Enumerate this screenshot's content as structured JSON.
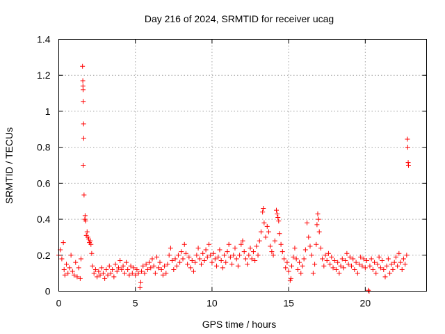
{
  "chart_data": {
    "type": "scatter",
    "title": "Day 216 of 2024, SRMTID for receiver ucag",
    "xlabel": "GPS time / hours",
    "ylabel": "SRMTID / TECUs",
    "xlim": [
      0,
      24
    ],
    "ylim": [
      0,
      1.4
    ],
    "xticks": [
      0,
      5,
      10,
      15,
      20
    ],
    "xtick_labels": [
      "0",
      "5",
      "10",
      "15",
      "20"
    ],
    "yticks": [
      0,
      0.2,
      0.4,
      0.6,
      0.8,
      1,
      1.2,
      1.4
    ],
    "ytick_labels": [
      "0",
      "0.2",
      "0.4",
      "0.6",
      "0.8",
      "1",
      "1.2",
      "1.4"
    ],
    "grid": true,
    "marker": "+",
    "series": [
      {
        "name": "SRMTID",
        "color": "#ff0000",
        "points": [
          [
            0.0,
            0.2
          ],
          [
            0.1,
            0.23
          ],
          [
            0.2,
            0.18
          ],
          [
            0.3,
            0.27
          ],
          [
            0.35,
            0.12
          ],
          [
            0.4,
            0.09
          ],
          [
            0.5,
            0.15
          ],
          [
            0.6,
            0.1
          ],
          [
            0.7,
            0.13
          ],
          [
            0.8,
            0.2
          ],
          [
            0.9,
            0.11
          ],
          [
            1.0,
            0.09
          ],
          [
            1.1,
            0.16
          ],
          [
            1.2,
            0.08
          ],
          [
            1.3,
            0.13
          ],
          [
            1.4,
            0.07
          ],
          [
            1.45,
            0.18
          ],
          [
            1.55,
            1.25
          ],
          [
            1.57,
            1.17
          ],
          [
            1.58,
            1.14
          ],
          [
            1.59,
            1.12
          ],
          [
            1.6,
            1.055
          ],
          [
            1.62,
            0.93
          ],
          [
            1.63,
            0.85
          ],
          [
            1.6,
            0.7
          ],
          [
            1.65,
            0.535
          ],
          [
            1.7,
            0.4
          ],
          [
            1.72,
            0.42
          ],
          [
            1.75,
            0.39
          ],
          [
            1.8,
            0.31
          ],
          [
            1.85,
            0.33
          ],
          [
            1.9,
            0.3
          ],
          [
            1.95,
            0.29
          ],
          [
            2.0,
            0.27
          ],
          [
            2.05,
            0.28
          ],
          [
            2.1,
            0.26
          ],
          [
            2.15,
            0.21
          ],
          [
            2.2,
            0.14
          ],
          [
            2.3,
            0.1
          ],
          [
            2.4,
            0.12
          ],
          [
            2.5,
            0.08
          ],
          [
            2.6,
            0.11
          ],
          [
            2.7,
            0.09
          ],
          [
            2.8,
            0.13
          ],
          [
            2.9,
            0.1
          ],
          [
            3.0,
            0.07
          ],
          [
            3.1,
            0.12
          ],
          [
            3.2,
            0.09
          ],
          [
            3.3,
            0.14
          ],
          [
            3.4,
            0.1
          ],
          [
            3.5,
            0.12
          ],
          [
            3.6,
            0.08
          ],
          [
            3.7,
            0.15
          ],
          [
            3.8,
            0.11
          ],
          [
            3.9,
            0.13
          ],
          [
            4.0,
            0.17
          ],
          [
            4.1,
            0.12
          ],
          [
            4.2,
            0.14
          ],
          [
            4.3,
            0.1
          ],
          [
            4.4,
            0.16
          ],
          [
            4.5,
            0.12
          ],
          [
            4.6,
            0.09
          ],
          [
            4.7,
            0.14
          ],
          [
            4.8,
            0.1
          ],
          [
            4.9,
            0.13
          ],
          [
            5.0,
            0.09
          ],
          [
            5.1,
            0.12
          ],
          [
            5.2,
            0.1
          ],
          [
            5.3,
            0.02
          ],
          [
            5.35,
            0.05
          ],
          [
            5.4,
            0.11
          ],
          [
            5.5,
            0.14
          ],
          [
            5.6,
            0.1
          ],
          [
            5.7,
            0.15
          ],
          [
            5.8,
            0.12
          ],
          [
            5.9,
            0.16
          ],
          [
            6.0,
            0.13
          ],
          [
            6.1,
            0.18
          ],
          [
            6.2,
            0.14
          ],
          [
            6.3,
            0.1
          ],
          [
            6.4,
            0.19
          ],
          [
            6.5,
            0.13
          ],
          [
            6.6,
            0.16
          ],
          [
            6.7,
            0.12
          ],
          [
            6.8,
            0.09
          ],
          [
            6.9,
            0.14
          ],
          [
            7.0,
            0.1
          ],
          [
            7.1,
            0.15
          ],
          [
            7.2,
            0.2
          ],
          [
            7.3,
            0.24
          ],
          [
            7.4,
            0.17
          ],
          [
            7.5,
            0.12
          ],
          [
            7.6,
            0.18
          ],
          [
            7.7,
            0.14
          ],
          [
            7.8,
            0.2
          ],
          [
            7.9,
            0.16
          ],
          [
            8.0,
            0.22
          ],
          [
            8.1,
            0.18
          ],
          [
            8.2,
            0.26
          ],
          [
            8.3,
            0.21
          ],
          [
            8.4,
            0.15
          ],
          [
            8.5,
            0.19
          ],
          [
            8.6,
            0.13
          ],
          [
            8.7,
            0.17
          ],
          [
            8.8,
            0.11
          ],
          [
            8.9,
            0.16
          ],
          [
            9.0,
            0.2
          ],
          [
            9.1,
            0.24
          ],
          [
            9.2,
            0.18
          ],
          [
            9.3,
            0.15
          ],
          [
            9.4,
            0.21
          ],
          [
            9.5,
            0.17
          ],
          [
            9.6,
            0.23
          ],
          [
            9.7,
            0.19
          ],
          [
            9.8,
            0.26
          ],
          [
            9.9,
            0.2
          ],
          [
            10.0,
            0.16
          ],
          [
            10.1,
            0.21
          ],
          [
            10.2,
            0.18
          ],
          [
            10.3,
            0.14
          ],
          [
            10.4,
            0.19
          ],
          [
            10.5,
            0.23
          ],
          [
            10.6,
            0.17
          ],
          [
            10.7,
            0.13
          ],
          [
            10.8,
            0.2
          ],
          [
            10.9,
            0.16
          ],
          [
            11.0,
            0.22
          ],
          [
            11.1,
            0.26
          ],
          [
            11.2,
            0.19
          ],
          [
            11.3,
            0.15
          ],
          [
            11.4,
            0.2
          ],
          [
            11.5,
            0.24
          ],
          [
            11.6,
            0.18
          ],
          [
            11.7,
            0.14
          ],
          [
            11.8,
            0.2
          ],
          [
            11.9,
            0.26
          ],
          [
            12.0,
            0.28
          ],
          [
            12.1,
            0.22
          ],
          [
            12.2,
            0.18
          ],
          [
            12.3,
            0.15
          ],
          [
            12.4,
            0.2
          ],
          [
            12.5,
            0.24
          ],
          [
            12.6,
            0.18
          ],
          [
            12.7,
            0.22
          ],
          [
            12.8,
            0.17
          ],
          [
            12.9,
            0.25
          ],
          [
            13.0,
            0.2
          ],
          [
            13.1,
            0.28
          ],
          [
            13.2,
            0.33
          ],
          [
            13.3,
            0.44
          ],
          [
            13.35,
            0.46
          ],
          [
            13.4,
            0.38
          ],
          [
            13.5,
            0.3
          ],
          [
            13.6,
            0.36
          ],
          [
            13.7,
            0.33
          ],
          [
            13.8,
            0.25
          ],
          [
            13.9,
            0.22
          ],
          [
            14.0,
            0.2
          ],
          [
            14.1,
            0.28
          ],
          [
            14.2,
            0.45
          ],
          [
            14.25,
            0.43
          ],
          [
            14.3,
            0.41
          ],
          [
            14.35,
            0.39
          ],
          [
            14.4,
            0.32
          ],
          [
            14.5,
            0.26
          ],
          [
            14.6,
            0.22
          ],
          [
            14.7,
            0.18
          ],
          [
            14.8,
            0.13
          ],
          [
            14.9,
            0.16
          ],
          [
            15.0,
            0.11
          ],
          [
            15.1,
            0.06
          ],
          [
            15.15,
            0.07
          ],
          [
            15.2,
            0.14
          ],
          [
            15.3,
            0.19
          ],
          [
            15.4,
            0.24
          ],
          [
            15.5,
            0.18
          ],
          [
            15.6,
            0.12
          ],
          [
            15.7,
            0.16
          ],
          [
            15.8,
            0.1
          ],
          [
            15.9,
            0.14
          ],
          [
            16.0,
            0.18
          ],
          [
            16.1,
            0.23
          ],
          [
            16.2,
            0.38
          ],
          [
            16.3,
            0.3
          ],
          [
            16.4,
            0.25
          ],
          [
            16.5,
            0.2
          ],
          [
            16.6,
            0.1
          ],
          [
            16.7,
            0.15
          ],
          [
            16.8,
            0.26
          ],
          [
            16.85,
            0.37
          ],
          [
            16.9,
            0.43
          ],
          [
            16.95,
            0.4
          ],
          [
            17.0,
            0.33
          ],
          [
            17.1,
            0.24
          ],
          [
            17.2,
            0.18
          ],
          [
            17.3,
            0.14
          ],
          [
            17.4,
            0.2
          ],
          [
            17.5,
            0.17
          ],
          [
            17.6,
            0.21
          ],
          [
            17.7,
            0.15
          ],
          [
            17.8,
            0.19
          ],
          [
            17.9,
            0.13
          ],
          [
            18.0,
            0.17
          ],
          [
            18.1,
            0.12
          ],
          [
            18.2,
            0.16
          ],
          [
            18.3,
            0.1
          ],
          [
            18.4,
            0.14
          ],
          [
            18.5,
            0.18
          ],
          [
            18.6,
            0.13
          ],
          [
            18.7,
            0.17
          ],
          [
            18.8,
            0.21
          ],
          [
            18.9,
            0.15
          ],
          [
            19.0,
            0.19
          ],
          [
            19.1,
            0.14
          ],
          [
            19.2,
            0.18
          ],
          [
            19.3,
            0.12
          ],
          [
            19.4,
            0.16
          ],
          [
            19.5,
            0.1
          ],
          [
            19.6,
            0.15
          ],
          [
            19.7,
            0.19
          ],
          [
            19.8,
            0.14
          ],
          [
            19.9,
            0.18
          ],
          [
            20.0,
            0.13
          ],
          [
            20.1,
            0.17
          ],
          [
            20.2,
            0.005
          ],
          [
            20.25,
            0.0
          ],
          [
            20.3,
            0.14
          ],
          [
            20.4,
            0.18
          ],
          [
            20.5,
            0.12
          ],
          [
            20.6,
            0.16
          ],
          [
            20.7,
            0.1
          ],
          [
            20.8,
            0.15
          ],
          [
            20.9,
            0.19
          ],
          [
            21.0,
            0.13
          ],
          [
            21.1,
            0.17
          ],
          [
            21.2,
            0.12
          ],
          [
            21.3,
            0.08
          ],
          [
            21.4,
            0.14
          ],
          [
            21.5,
            0.18
          ],
          [
            21.6,
            0.1
          ],
          [
            21.7,
            0.15
          ],
          [
            21.8,
            0.12
          ],
          [
            21.9,
            0.16
          ],
          [
            22.0,
            0.19
          ],
          [
            22.1,
            0.14
          ],
          [
            22.2,
            0.21
          ],
          [
            22.3,
            0.16
          ],
          [
            22.4,
            0.12
          ],
          [
            22.5,
            0.18
          ],
          [
            22.6,
            0.15
          ],
          [
            22.7,
            0.2
          ],
          [
            22.75,
            0.845
          ],
          [
            22.77,
            0.8
          ],
          [
            22.8,
            0.715
          ],
          [
            22.82,
            0.7
          ]
        ]
      }
    ]
  }
}
